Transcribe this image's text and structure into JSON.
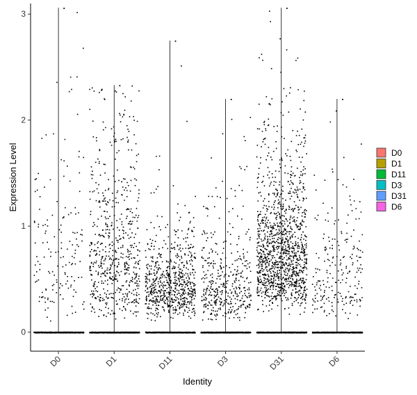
{
  "chart_data": {
    "type": "violin-jitter",
    "xlabel": "Identity",
    "ylabel": "Expression Level",
    "ylim": [
      -0.18,
      3.1
    ],
    "yticks": [
      0,
      1,
      2,
      3
    ],
    "categories": [
      "D0",
      "D1",
      "D11",
      "D3",
      "D31",
      "D6"
    ],
    "legend": {
      "position": "right",
      "entries": [
        {
          "name": "D0",
          "color": "#F8766D"
        },
        {
          "name": "D1",
          "color": "#B79F00"
        },
        {
          "name": "D11",
          "color": "#00BA38"
        },
        {
          "name": "D3",
          "color": "#00BFC4"
        },
        {
          "name": "D31",
          "color": "#619CFF"
        },
        {
          "name": "D6",
          "color": "#F564E3"
        }
      ]
    },
    "groups": [
      {
        "name": "D0",
        "max": 3.06,
        "n_zero": 900,
        "n_pos": 160,
        "median_pos": 0.7,
        "spread": 0.65
      },
      {
        "name": "D1",
        "max": 2.33,
        "n_zero": 900,
        "n_pos": 620,
        "median_pos": 0.75,
        "spread": 0.6
      },
      {
        "name": "D11",
        "max": 2.75,
        "n_zero": 900,
        "n_pos": 700,
        "median_pos": 0.45,
        "spread": 0.45
      },
      {
        "name": "D3",
        "max": 2.2,
        "n_zero": 900,
        "n_pos": 420,
        "median_pos": 0.45,
        "spread": 0.55
      },
      {
        "name": "D31",
        "max": 3.06,
        "n_zero": 900,
        "n_pos": 1300,
        "median_pos": 0.75,
        "spread": 0.5
      },
      {
        "name": "D6",
        "max": 2.2,
        "n_zero": 900,
        "n_pos": 230,
        "median_pos": 0.55,
        "spread": 0.55
      }
    ],
    "grid": false,
    "point_color": "#000000"
  }
}
